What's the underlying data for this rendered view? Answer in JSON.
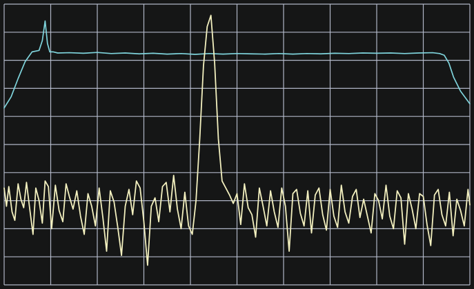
{
  "chart_data": {
    "type": "line",
    "title": "",
    "xlabel": "",
    "ylabel": "",
    "grid": true,
    "grid_divisions": {
      "x": 10,
      "y": 10
    },
    "xlim": [
      0,
      10
    ],
    "ylim": [
      0,
      10
    ],
    "colors": {
      "background": "#151616",
      "grid": "#b9bfd0",
      "cyan_trace": "#7fd4dc",
      "yellow_trace": "#f3f0bf"
    },
    "series": [
      {
        "color_key": "cyan_trace",
        "x": [
          0.0,
          0.15,
          0.3,
          0.45,
          0.6,
          0.75,
          0.82,
          0.88,
          0.93,
          0.98,
          1.05,
          1.15,
          1.4,
          1.7,
          2.0,
          2.3,
          2.6,
          2.9,
          3.2,
          3.5,
          3.8,
          4.1,
          4.4,
          4.7,
          5.0,
          5.3,
          5.6,
          5.9,
          6.2,
          6.5,
          6.8,
          7.1,
          7.4,
          7.7,
          8.0,
          8.3,
          8.6,
          8.9,
          9.2,
          9.35,
          9.45,
          9.55,
          9.65,
          9.8,
          10.0
        ],
        "y": [
          6.3,
          6.7,
          7.35,
          7.95,
          8.3,
          8.35,
          8.7,
          9.4,
          8.6,
          8.3,
          8.3,
          8.26,
          8.27,
          8.25,
          8.28,
          8.24,
          8.26,
          8.23,
          8.25,
          8.22,
          8.24,
          8.21,
          8.24,
          8.22,
          8.24,
          8.23,
          8.22,
          8.24,
          8.22,
          8.24,
          8.23,
          8.25,
          8.24,
          8.26,
          8.25,
          8.26,
          8.24,
          8.26,
          8.27,
          8.24,
          8.18,
          7.9,
          7.4,
          6.9,
          6.45
        ]
      },
      {
        "color_key": "yellow_trace",
        "x": [
          0.0,
          0.05,
          0.1,
          0.17,
          0.23,
          0.3,
          0.36,
          0.42,
          0.48,
          0.55,
          0.62,
          0.68,
          0.75,
          0.82,
          0.88,
          0.95,
          1.02,
          1.1,
          1.18,
          1.26,
          1.33,
          1.4,
          1.48,
          1.56,
          1.64,
          1.72,
          1.8,
          1.88,
          1.96,
          2.04,
          2.12,
          2.2,
          2.28,
          2.36,
          2.44,
          2.52,
          2.6,
          2.68,
          2.76,
          2.84,
          2.92,
          3.0,
          3.08,
          3.16,
          3.24,
          3.32,
          3.4,
          3.48,
          3.56,
          3.64,
          3.72,
          3.8,
          3.88,
          3.96,
          4.04,
          4.12,
          4.2,
          4.28,
          4.36,
          4.44,
          4.52,
          4.6,
          4.68,
          4.76,
          4.84,
          4.92,
          5.0,
          5.08,
          5.16,
          5.24,
          5.32,
          5.4,
          5.48,
          5.56,
          5.64,
          5.72,
          5.8,
          5.88,
          5.96,
          6.04,
          6.12,
          6.2,
          6.28,
          6.36,
          6.44,
          6.52,
          6.6,
          6.68,
          6.76,
          6.84,
          6.92,
          7.0,
          7.08,
          7.16,
          7.24,
          7.32,
          7.4,
          7.48,
          7.56,
          7.64,
          7.72,
          7.8,
          7.88,
          7.96,
          8.04,
          8.12,
          8.2,
          8.28,
          8.36,
          8.44,
          8.52,
          8.6,
          8.68,
          8.76,
          8.84,
          8.92,
          9.0,
          9.08,
          9.16,
          9.24,
          9.32,
          9.4,
          9.48,
          9.56,
          9.64,
          9.72,
          9.8,
          9.88,
          9.96,
          10.0
        ],
        "y": [
          3.45,
          2.8,
          3.5,
          2.6,
          2.3,
          3.6,
          3.05,
          2.75,
          3.65,
          2.7,
          1.8,
          3.45,
          3.0,
          2.2,
          3.7,
          3.5,
          2.0,
          3.55,
          2.65,
          2.25,
          3.6,
          3.15,
          2.7,
          3.35,
          2.45,
          1.8,
          3.25,
          2.8,
          2.1,
          3.45,
          2.4,
          1.2,
          3.35,
          2.95,
          2.05,
          1.05,
          2.8,
          3.4,
          2.5,
          3.7,
          3.45,
          2.25,
          0.7,
          2.8,
          3.1,
          2.25,
          3.5,
          3.65,
          2.6,
          3.9,
          2.7,
          2.0,
          3.3,
          2.1,
          1.8,
          3.0,
          5.2,
          7.8,
          9.2,
          9.6,
          7.9,
          5.2,
          3.7,
          3.45,
          3.2,
          2.9,
          3.25,
          2.15,
          3.6,
          2.75,
          2.5,
          1.7,
          3.45,
          2.8,
          2.1,
          3.35,
          2.6,
          2.05,
          3.45,
          2.8,
          1.2,
          3.25,
          3.4,
          2.55,
          2.1,
          3.35,
          1.85,
          3.2,
          3.45,
          2.5,
          1.95,
          3.4,
          2.45,
          2.05,
          3.55,
          2.6,
          2.2,
          3.15,
          3.4,
          2.4,
          3.05,
          2.45,
          1.85,
          3.25,
          3.0,
          2.35,
          3.55,
          2.45,
          2.0,
          3.35,
          3.1,
          1.45,
          3.25,
          2.7,
          2.0,
          3.25,
          3.15,
          2.15,
          1.4,
          3.2,
          3.4,
          2.5,
          2.1,
          3.3,
          1.75,
          3.05,
          2.65,
          2.1,
          3.4,
          2.85
        ]
      }
    ]
  }
}
